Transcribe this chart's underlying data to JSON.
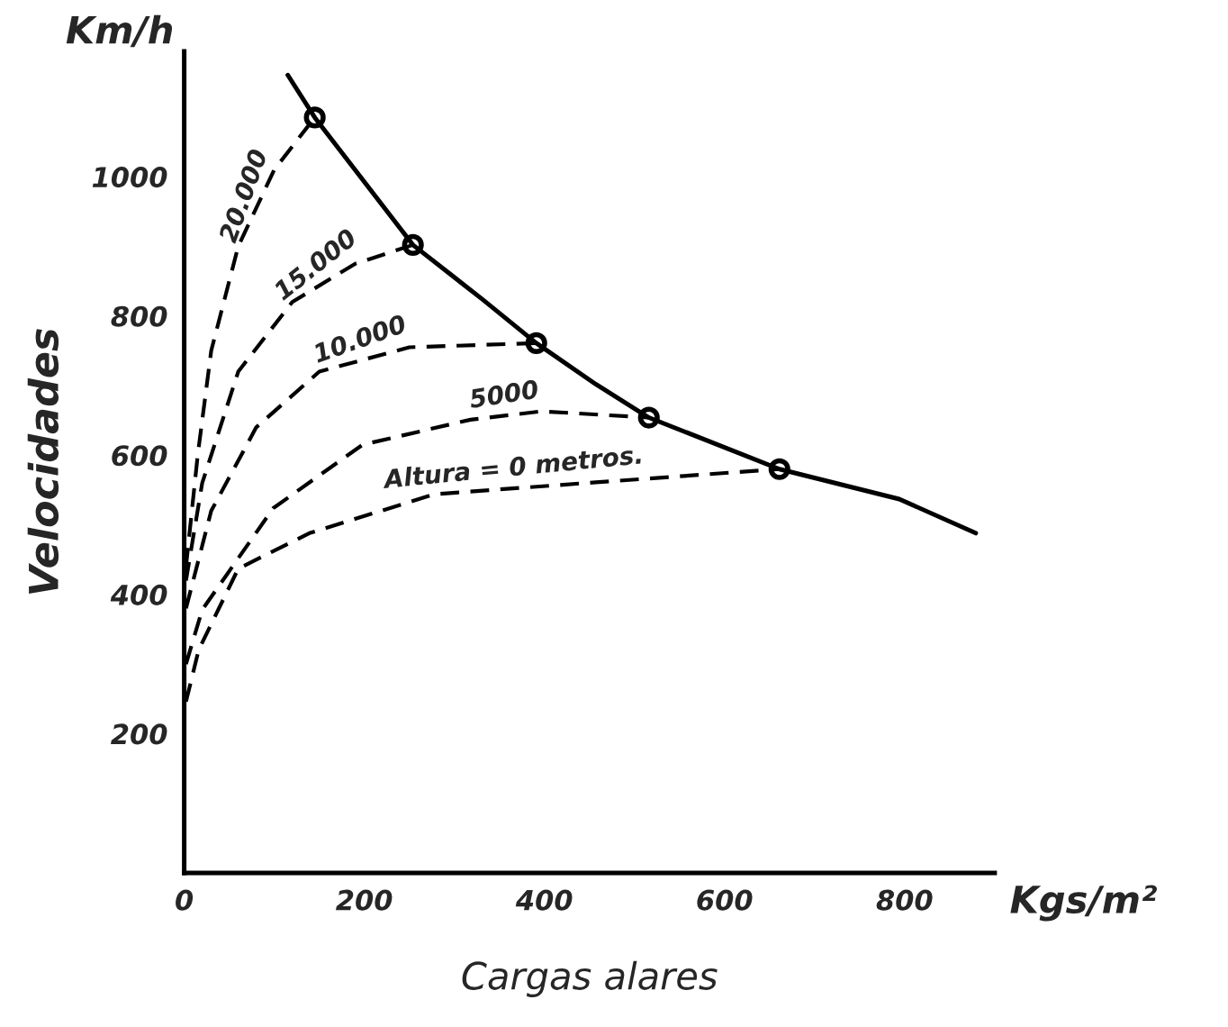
{
  "chart_data": {
    "type": "line",
    "xlabel": "Cargas alares",
    "ylabel": "Velocidades",
    "annotations": [
      "Km/h",
      "Kgs/m²"
    ],
    "xlim": [
      0,
      900
    ],
    "ylim": [
      0,
      1180
    ],
    "xticks": [
      0,
      200,
      400,
      600,
      800
    ],
    "yticks": [
      200,
      400,
      600,
      800,
      1000
    ],
    "grid": false,
    "legend": false,
    "series": [
      {
        "color": "#000000",
        "line_style": "solid",
        "marker": "none",
        "x": [
          115,
          145,
          254,
          331,
          391,
          457,
          516,
          661,
          794,
          879
        ],
        "values": [
          1146,
          1085,
          902,
          824,
          761,
          702,
          654,
          580,
          537,
          488
        ]
      },
      {
        "name": "20.000",
        "color": "#000000",
        "line_style": "dashed",
        "marker": "none",
        "x": [
          2,
          15,
          30,
          60,
          100,
          145
        ],
        "values": [
          440,
          600,
          750,
          900,
          1010,
          1085
        ]
      },
      {
        "name": "15.000",
        "color": "#000000",
        "line_style": "dashed",
        "marker": "none",
        "x": [
          2,
          20,
          60,
          120,
          190,
          254
        ],
        "values": [
          420,
          560,
          720,
          820,
          875,
          902
        ]
      },
      {
        "name": "10.000",
        "color": "#000000",
        "line_style": "dashed",
        "marker": "none",
        "x": [
          2,
          30,
          80,
          150,
          250,
          391
        ],
        "values": [
          380,
          520,
          640,
          720,
          755,
          761
        ]
      },
      {
        "name": "5000",
        "color": "#000000",
        "line_style": "dashed",
        "marker": "none",
        "x": [
          2,
          20,
          99,
          198,
          318,
          397,
          516
        ],
        "values": [
          300,
          378,
          524,
          615,
          651,
          663,
          654
        ]
      },
      {
        "name": "Altura = 0 metros.",
        "color": "#000000",
        "line_style": "dashed",
        "marker": "none",
        "x": [
          2,
          16,
          60,
          139,
          278,
          457,
          661
        ],
        "values": [
          246,
          320,
          437,
          488,
          544,
          561,
          580
        ]
      },
      {
        "type": "scatter",
        "color": "#000000",
        "marker": "circle",
        "x": [
          145,
          254,
          391,
          516,
          661
        ],
        "values": [
          1085,
          902,
          761,
          654,
          580
        ]
      }
    ]
  }
}
